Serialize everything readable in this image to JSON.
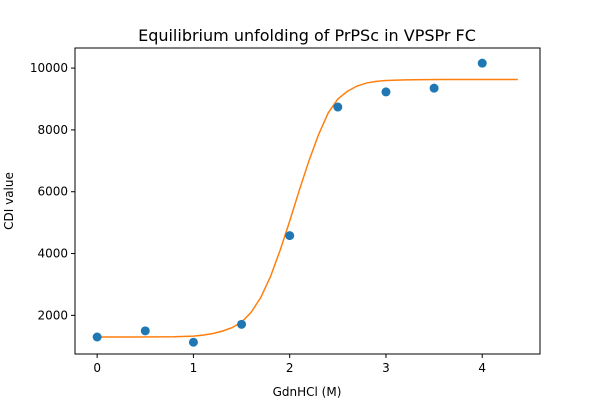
{
  "chart_data": {
    "type": "scatter",
    "title": "Equilibrium unfolding of PrPSc in VPSPr FC",
    "xlabel": "GdnHCl (M)",
    "ylabel": "CDI value",
    "xlim": [
      -0.23,
      4.6
    ],
    "ylim": [
      750,
      10650
    ],
    "xticks": [
      0,
      1,
      2,
      3,
      4
    ],
    "yticks": [
      2000,
      4000,
      6000,
      8000,
      10000
    ],
    "grid": false,
    "legend": "none",
    "series": [
      {
        "kind": "scatter",
        "color": "#1f77b4",
        "x": [
          0,
          0.5,
          1.0,
          1.5,
          2.0,
          2.5,
          3.0,
          3.5,
          4.0
        ],
        "y": [
          1300,
          1500,
          1130,
          1710,
          4580,
          8740,
          9230,
          9350,
          10160
        ]
      },
      {
        "kind": "line",
        "color": "#ff7f0e",
        "x": [
          0,
          0.2,
          0.4,
          0.6,
          0.8,
          1.0,
          1.1,
          1.2,
          1.3,
          1.4,
          1.5,
          1.6,
          1.7,
          1.8,
          1.9,
          2.0,
          2.1,
          2.2,
          2.3,
          2.4,
          2.5,
          2.6,
          2.7,
          2.8,
          2.9,
          3.0,
          3.2,
          3.4,
          3.6,
          3.8,
          4.0,
          4.2,
          4.37
        ],
        "y": [
          1300,
          1300,
          1300,
          1305,
          1310,
          1330,
          1360,
          1410,
          1490,
          1600,
          1780,
          2100,
          2580,
          3250,
          4100,
          5050,
          6050,
          7000,
          7850,
          8550,
          9000,
          9250,
          9420,
          9520,
          9570,
          9600,
          9620,
          9628,
          9630,
          9630,
          9630,
          9630,
          9630
        ]
      }
    ]
  }
}
